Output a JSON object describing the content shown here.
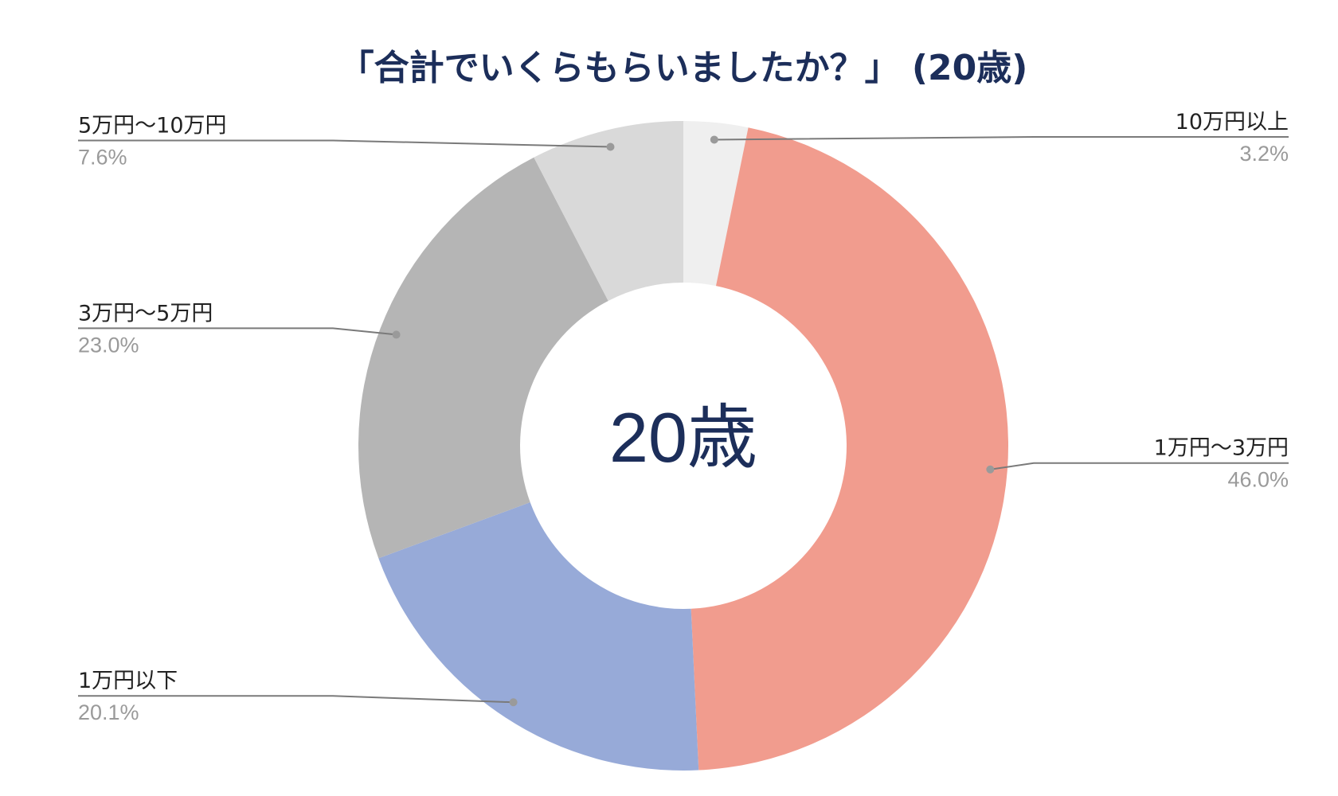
{
  "chart_data": {
    "type": "pie",
    "variant": "donut",
    "title": "「合計でいくらもらいましたか？」 (20歳)",
    "center_label": "20歳",
    "start_angle_deg": 0,
    "direction": "clockwise",
    "legend": "none",
    "slices": [
      {
        "label": "10万円以上",
        "value": 3.2,
        "value_label": "3.2%",
        "color": "#efefef",
        "label_side": "right"
      },
      {
        "label": "1万円〜3万円",
        "value": 46.0,
        "value_label": "46.0%",
        "color": "#f19c8e",
        "label_side": "right"
      },
      {
        "label": "1万円以下",
        "value": 20.1,
        "value_label": "20.1%",
        "color": "#97aad8",
        "label_side": "left"
      },
      {
        "label": "3万円〜5万円",
        "value": 23.0,
        "value_label": "23.0%",
        "color": "#b5b5b5",
        "label_side": "left"
      },
      {
        "label": "5万円〜10万円",
        "value": 7.6,
        "value_label": "7.6%",
        "color": "#d9d9d9",
        "label_side": "left"
      }
    ]
  }
}
